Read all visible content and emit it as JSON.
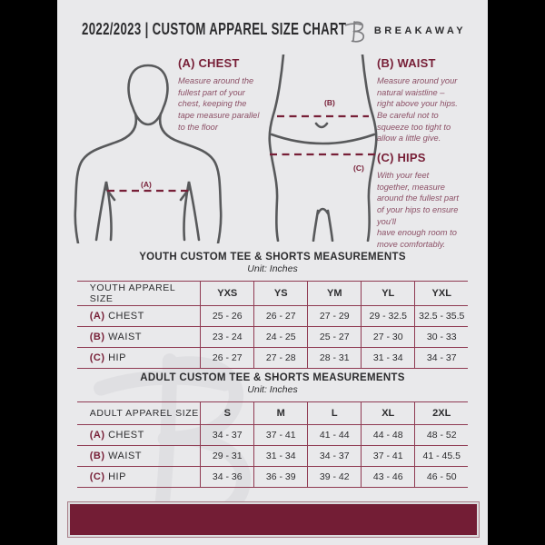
{
  "page": {
    "header": {
      "title": "2022/2023  |  CUSTOM APPAREL SIZE CHART",
      "brand": "BREAKAWAY",
      "logo_icon": "breakaway-b-logo"
    },
    "diagram": {
      "labels": {
        "a": "(A)",
        "b": "(B)",
        "c": "(C)"
      },
      "instructions": [
        {
          "id": "chest",
          "heading": "(A) CHEST",
          "body": "Measure around the\nfullest part of your\nchest, keeping the\ntape measure parallel\nto the floor"
        },
        {
          "id": "waist",
          "heading": "(B) WAIST",
          "body": "Measure around your\nnatural waistline –\nright above your hips.\nBe careful not to\nsqueeze too tight to\nallow a little give."
        },
        {
          "id": "hips",
          "heading": "(C) HIPS",
          "body": "With your feet\ntogether, measure\naround the fullest part\nof your hips to ensure\nyou'll\nhave enough room to\nmove comfortably."
        }
      ]
    },
    "tables": [
      {
        "title": "YOUTH CUSTOM TEE & SHORTS MEASUREMENTS",
        "unit": "Unit: Inches",
        "label_header": "YOUTH APPAREL SIZE",
        "columns": [
          "YXS",
          "YS",
          "YM",
          "YL",
          "YXL"
        ],
        "rows": [
          {
            "prefix": "(A)",
            "label": "CHEST",
            "values": [
              "25 - 26",
              "26 - 27",
              "27 - 29",
              "29 - 32.5",
              "32.5 - 35.5"
            ]
          },
          {
            "prefix": "(B)",
            "label": "WAIST",
            "values": [
              "23 - 24",
              "24 - 25",
              "25 - 27",
              "27 - 30",
              "30 - 33"
            ]
          },
          {
            "prefix": "(C)",
            "label": "HIP",
            "values": [
              "26 - 27",
              "27 - 28",
              "28 - 31",
              "31 - 34",
              "34 - 37"
            ]
          }
        ]
      },
      {
        "title": "ADULT CUSTOM TEE & SHORTS MEASUREMENTS",
        "unit": "Unit: Inches",
        "label_header": "ADULT APPAREL SIZE",
        "columns": [
          "S",
          "M",
          "L",
          "XL",
          "2XL"
        ],
        "rows": [
          {
            "prefix": "(A)",
            "label": "CHEST",
            "values": [
              "34 - 37",
              "37 - 41",
              "41 - 44",
              "44 - 48",
              "48 - 52"
            ]
          },
          {
            "prefix": "(B)",
            "label": "WAIST",
            "values": [
              "29 - 31",
              "31 - 34",
              "34 - 37",
              "37 - 41",
              "41 - 45.5"
            ]
          },
          {
            "prefix": "(C)",
            "label": "HIP",
            "values": [
              "34 - 36",
              "36 - 39",
              "39 - 42",
              "43 - 46",
              "46 - 50"
            ]
          }
        ]
      }
    ],
    "colors": {
      "maroon": "#771F37",
      "footer": "#731D35",
      "table-border": "#8F3A52",
      "page-bg": "#E9E9EB",
      "text-dark": "#2D2D2F",
      "figure-gray": "#58595B",
      "instr-text": "#8C5066",
      "logo-gray": "#7D7D80",
      "watermark": "#DFDFE2"
    },
    "watermark_icon": "breakaway-b-logo"
  }
}
